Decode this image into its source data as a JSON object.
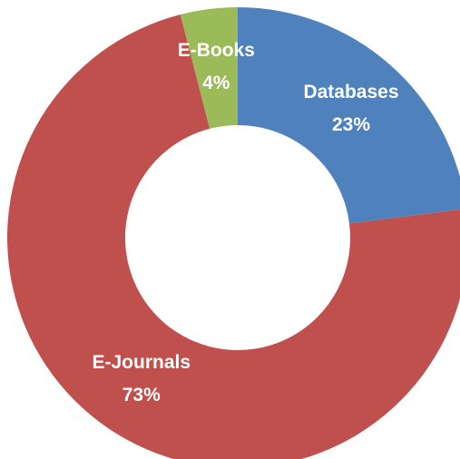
{
  "chart_data": {
    "type": "donut",
    "categories": [
      "Databases",
      "E-Journals",
      "E-Books"
    ],
    "values": [
      23,
      73,
      4
    ],
    "value_labels": [
      "23%",
      "73%",
      "4%"
    ],
    "colors": [
      "#4f81bd",
      "#c0504d",
      "#9bbb59"
    ]
  }
}
